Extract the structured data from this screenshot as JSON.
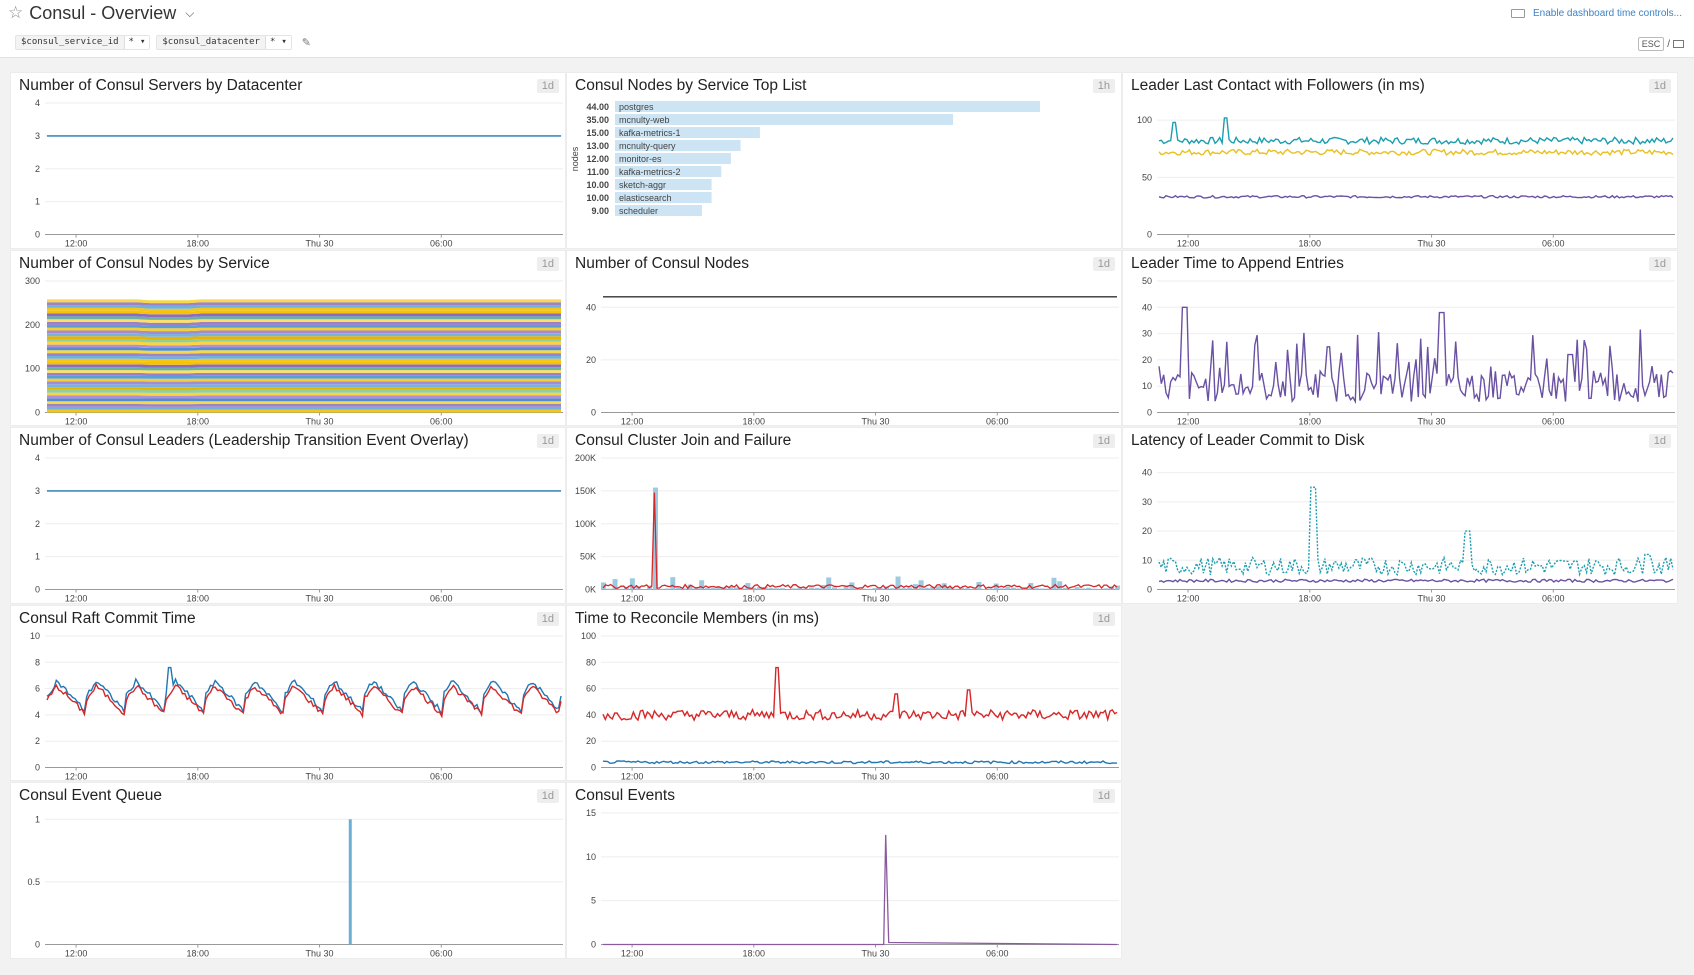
{
  "dashboard": {
    "title": "Consul - Overview",
    "favorite_icon": "star-outline-icon",
    "title_menu_icon": "chevron-down-icon",
    "variables": [
      {
        "name": "$consul_service_id",
        "value": "*"
      },
      {
        "name": "$consul_datacenter",
        "value": "*"
      }
    ],
    "edit_icon": "pencil-icon",
    "time_controls_label": "Enable dashboard time controls...",
    "keyboard_icon": "keyboard-icon",
    "esc_label": "ESC",
    "esc_separator": "/",
    "tv_icon": "monitor-icon"
  },
  "x_ticks": [
    "12:00",
    "18:00",
    "Thu 30",
    "06:00"
  ],
  "colors": {
    "blue": "#1f77b4",
    "light_blue": "#6baed6",
    "red": "#d62728",
    "purple": "#6a51a3",
    "yellow": "#e8c020",
    "teal": "#1a9eb0",
    "toplist_bar": "#cce4f3"
  },
  "widgets": [
    {
      "id": "w1",
      "title": "Number of Consul Servers by Datacenter",
      "timeframe": "1d",
      "chart_data": {
        "type": "line",
        "y_ticks": [
          "0",
          "1",
          "2",
          "3",
          "4"
        ],
        "ylim": [
          0,
          4
        ],
        "series": [
          {
            "color": "#1f77b4",
            "values": [
              3,
              3,
              3,
              3,
              3,
              3,
              3,
              3,
              3,
              3,
              3,
              3
            ]
          }
        ]
      }
    },
    {
      "id": "w2",
      "title": "Consul Nodes by Service Top List",
      "timeframe": "1h",
      "chart_data": {
        "type": "bar",
        "ylabel": "nodes",
        "categories": [
          "postgres",
          "mcnulty-web",
          "kafka-metrics-1",
          "mcnulty-query",
          "monitor-es",
          "kafka-metrics-2",
          "sketch-aggr",
          "elasticsearch",
          "scheduler"
        ],
        "value_labels": [
          "44.00",
          "35.00",
          "15.00",
          "13.00",
          "12.00",
          "11.00",
          "10.00",
          "10.00",
          "9.00"
        ],
        "values": [
          44,
          35,
          15,
          13,
          12,
          11,
          10,
          10,
          9
        ]
      }
    },
    {
      "id": "w3",
      "title": "Leader Last Contact with Followers (in ms)",
      "timeframe": "1d",
      "chart_data": {
        "type": "line",
        "y_ticks": [
          "0",
          "50",
          "100"
        ],
        "ylim": [
          0,
          115
        ],
        "series": [
          {
            "color": "#1a9eb0",
            "base": 82,
            "noise": 6,
            "spikes": [
              [
                0.03,
                98
              ],
              [
                0.13,
                102
              ]
            ]
          },
          {
            "color": "#e8c020",
            "base": 72,
            "noise": 5
          },
          {
            "color": "#6a51a3",
            "base": 33,
            "noise": 2
          }
        ]
      }
    },
    {
      "id": "w4",
      "title": "Number of Consul Nodes by Service",
      "timeframe": "1d",
      "chart_data": {
        "type": "area",
        "y_ticks": [
          "0",
          "100",
          "200",
          "300"
        ],
        "ylim": [
          0,
          300
        ]
      }
    },
    {
      "id": "w5",
      "title": "Number of Consul Nodes",
      "timeframe": "1d",
      "chart_data": {
        "type": "line",
        "y_ticks": [
          "0",
          "20",
          "40"
        ],
        "ylim": [
          0,
          50
        ],
        "series": [
          {
            "color": "#333333",
            "values": [
              44,
              44,
              44,
              44,
              44,
              44,
              44,
              44,
              44,
              44,
              44,
              44
            ]
          }
        ]
      }
    },
    {
      "id": "w6",
      "title": "Leader Time to Append Entries",
      "timeframe": "1d",
      "chart_data": {
        "type": "line",
        "y_ticks": [
          "0",
          "10",
          "20",
          "30",
          "40",
          "50"
        ],
        "ylim": [
          0,
          50
        ],
        "series": [
          {
            "color": "#6a51a3",
            "base": 10,
            "noise": 12,
            "spikes": [
              [
                0.05,
                40
              ],
              [
                0.33,
                25
              ],
              [
                0.55,
                38
              ],
              [
                0.8,
                22
              ]
            ]
          }
        ]
      }
    },
    {
      "id": "w7",
      "title": "Number of Consul Leaders (Leadership Transition Event Overlay)",
      "timeframe": "1d",
      "chart_data": {
        "type": "line",
        "y_ticks": [
          "0",
          "1",
          "2",
          "3",
          "4"
        ],
        "ylim": [
          0,
          4
        ],
        "series": [
          {
            "color": "#1f77b4",
            "values": [
              3,
              3,
              3,
              3,
              3,
              3,
              3,
              3,
              3,
              3,
              3,
              3
            ]
          }
        ]
      }
    },
    {
      "id": "w8",
      "title": "Consul Cluster Join and Failure",
      "timeframe": "1d",
      "chart_data": {
        "type": "bar",
        "y_ticks": [
          "0K",
          "50K",
          "100K",
          "150K",
          "200K"
        ],
        "ylim": [
          0,
          200000
        ],
        "spike_at": 0.1,
        "spike_value": 155000
      }
    },
    {
      "id": "w9",
      "title": "Latency of Leader Commit to Disk",
      "timeframe": "1d",
      "chart_data": {
        "type": "line",
        "y_ticks": [
          "0",
          "10",
          "20",
          "30",
          "40"
        ],
        "ylim": [
          0,
          45
        ],
        "series": [
          {
            "color": "#1a9eb0",
            "dashed": true,
            "base": 8,
            "noise": 6,
            "spikes": [
              [
                0.3,
                35
              ],
              [
                0.6,
                20
              ],
              [
                0.95,
                12
              ]
            ]
          },
          {
            "color": "#6a51a3",
            "base": 3,
            "noise": 1
          }
        ]
      }
    },
    {
      "id": "w10",
      "title": "Consul Raft Commit Time",
      "timeframe": "1d",
      "chart_data": {
        "type": "line",
        "y_ticks": [
          "0",
          "2",
          "4",
          "6",
          "8",
          "10"
        ],
        "ylim": [
          0,
          10
        ],
        "series": [
          {
            "color": "#1f77b4",
            "sawtooth": true,
            "base": 5.4,
            "amp": 1.2,
            "spikes": [
              [
                0.24,
                7.6
              ]
            ]
          },
          {
            "color": "#d62728",
            "sawtooth": true,
            "base": 5.1,
            "amp": 1.1
          }
        ]
      }
    },
    {
      "id": "w11",
      "title": "Time to Reconcile Members (in ms)",
      "timeframe": "1d",
      "chart_data": {
        "type": "line",
        "y_ticks": [
          "0",
          "20",
          "40",
          "60",
          "80",
          "100"
        ],
        "ylim": [
          0,
          100
        ],
        "series": [
          {
            "color": "#d62728",
            "base": 40,
            "noise": 8,
            "spikes": [
              [
                0.34,
                76
              ],
              [
                0.57,
                56
              ],
              [
                0.71,
                59
              ]
            ]
          },
          {
            "color": "#1f77b4",
            "base": 4,
            "noise": 2
          }
        ]
      }
    },
    {
      "id": "w12",
      "title": "Consul Event Queue",
      "timeframe": "1d",
      "chart_data": {
        "type": "bar",
        "y_ticks": [
          "0",
          "0.5",
          "1"
        ],
        "ylim": [
          0,
          1.05
        ],
        "spike_at": 0.59,
        "spike_value": 1
      }
    },
    {
      "id": "w13",
      "title": "Consul Events",
      "timeframe": "1d",
      "chart_data": {
        "type": "line",
        "y_ticks": [
          "0",
          "5",
          "10",
          "15"
        ],
        "ylim": [
          0,
          15
        ],
        "spike_at": 0.55,
        "spike_value": 12.5
      }
    }
  ]
}
